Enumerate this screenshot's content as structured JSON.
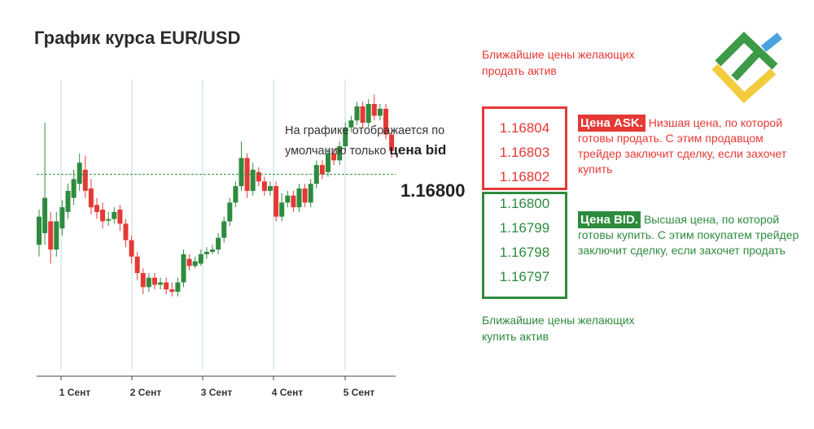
{
  "title": "График курса EUR/USD",
  "note": {
    "text": "На графике отображается по умолчанию только ",
    "bold": "цена bid"
  },
  "current_price": "1.16800",
  "ask": {
    "caption": "Ближайшие цены желающих продать актив",
    "prices": [
      "1.16804",
      "1.16803",
      "1.16802"
    ],
    "tag": "Цена ASK.",
    "description": " Низшая цена, по которой готовы продать. С этим продавцом трейдер заключит сделку, если захочет купить",
    "color": "#e53935"
  },
  "bid": {
    "caption": "Ближайшие цены желающих купить актив",
    "prices": [
      "1.16800",
      "1.16799",
      "1.16798",
      "1.16797"
    ],
    "tag": "Цена BID.",
    "description": " Высшая цена, по которой готовы купить. С этим покупатем трейдер заключит сделку, если захочет продать",
    "color": "#2e8b3e"
  },
  "logo": {
    "icon": "brand-logo-icon",
    "colors": [
      "#3d9a47",
      "#4aa3df",
      "#f2cc3d"
    ]
  },
  "chart_data": {
    "type": "candlestick",
    "title": "График курса EUR/USD",
    "x_tick_labels": [
      "1 Сент",
      "2 Сент",
      "3 Сент",
      "4 Сент",
      "5 Сент"
    ],
    "ylim": [
      1.162,
      1.171
    ],
    "current_price": 1.168,
    "up_color": "#2e8b3e",
    "down_color": "#e53935",
    "grid": "vertical",
    "candles": [
      [
        1.165,
        1.1662,
        1.1665,
        1.1645
      ],
      [
        1.1655,
        1.167,
        1.1702,
        1.165
      ],
      [
        1.166,
        1.1648,
        1.1664,
        1.1642
      ],
      [
        1.1648,
        1.166,
        1.1664,
        1.1645
      ],
      [
        1.1657,
        1.1666,
        1.1669,
        1.1654
      ],
      [
        1.1664,
        1.1673,
        1.1676,
        1.1661
      ],
      [
        1.167,
        1.1678,
        1.1682,
        1.1667
      ],
      [
        1.1676,
        1.1685,
        1.1689,
        1.1673
      ],
      [
        1.1682,
        1.1673,
        1.1688,
        1.167
      ],
      [
        1.1674,
        1.1666,
        1.1678,
        1.1663
      ],
      [
        1.1667,
        1.1664,
        1.167,
        1.1661
      ],
      [
        1.1665,
        1.166,
        1.1668,
        1.1657
      ],
      [
        1.1661,
        1.1661,
        1.1664,
        1.1658
      ],
      [
        1.1661,
        1.1664,
        1.1666,
        1.1659
      ],
      [
        1.1665,
        1.1659,
        1.1667,
        1.1656
      ],
      [
        1.1659,
        1.1652,
        1.1661,
        1.1649
      ],
      [
        1.1652,
        1.1645,
        1.1654,
        1.1642
      ],
      [
        1.1645,
        1.1638,
        1.1647,
        1.1635
      ],
      [
        1.1638,
        1.1632,
        1.164,
        1.1629
      ],
      [
        1.1632,
        1.1636,
        1.1638,
        1.163
      ],
      [
        1.1636,
        1.1633,
        1.1638,
        1.1631
      ],
      [
        1.1633,
        1.1634,
        1.1636,
        1.1631
      ],
      [
        1.1634,
        1.1631,
        1.1636,
        1.1629
      ],
      [
        1.1631,
        1.163,
        1.1634,
        1.1628
      ],
      [
        1.163,
        1.1634,
        1.1636,
        1.1628
      ],
      [
        1.1634,
        1.1646,
        1.1648,
        1.1632
      ],
      [
        1.1644,
        1.1641,
        1.1646,
        1.1639
      ],
      [
        1.1641,
        1.1643,
        1.1645,
        1.164
      ],
      [
        1.1642,
        1.1646,
        1.1648,
        1.1641
      ],
      [
        1.1646,
        1.1647,
        1.1649,
        1.1644
      ],
      [
        1.1647,
        1.1648,
        1.165,
        1.1646
      ],
      [
        1.1648,
        1.1653,
        1.1655,
        1.1646
      ],
      [
        1.1653,
        1.166,
        1.1662,
        1.1651
      ],
      [
        1.166,
        1.1668,
        1.167,
        1.1658
      ],
      [
        1.1668,
        1.1675,
        1.1677,
        1.1666
      ],
      [
        1.1675,
        1.1687,
        1.1694,
        1.1673
      ],
      [
        1.1687,
        1.1673,
        1.1689,
        1.167
      ],
      [
        1.1673,
        1.1682,
        1.1685,
        1.1671
      ],
      [
        1.1681,
        1.1677,
        1.1683,
        1.1675
      ],
      [
        1.1677,
        1.1673,
        1.1679,
        1.1671
      ],
      [
        1.1673,
        1.1675,
        1.1677,
        1.1671
      ],
      [
        1.1675,
        1.1662,
        1.1677,
        1.166
      ],
      [
        1.1662,
        1.1668,
        1.1672,
        1.166
      ],
      [
        1.1668,
        1.1671,
        1.1673,
        1.1666
      ],
      [
        1.1671,
        1.1666,
        1.1673,
        1.1664
      ],
      [
        1.1666,
        1.1674,
        1.1676,
        1.1664
      ],
      [
        1.1674,
        1.1668,
        1.1676,
        1.1666
      ],
      [
        1.1668,
        1.1676,
        1.1678,
        1.1666
      ],
      [
        1.1676,
        1.1684,
        1.1686,
        1.1674
      ],
      [
        1.1684,
        1.168,
        1.1686,
        1.1678
      ],
      [
        1.1681,
        1.1689,
        1.1691,
        1.1679
      ],
      [
        1.1689,
        1.1686,
        1.1691,
        1.1684
      ],
      [
        1.1686,
        1.1692,
        1.1694,
        1.1684
      ],
      [
        1.1692,
        1.17,
        1.1702,
        1.169
      ],
      [
        1.17,
        1.1703,
        1.1705,
        1.1698
      ],
      [
        1.1703,
        1.1709,
        1.1711,
        1.1701
      ],
      [
        1.1709,
        1.1702,
        1.1711,
        1.17
      ],
      [
        1.1702,
        1.171,
        1.1712,
        1.17
      ],
      [
        1.171,
        1.1705,
        1.1714,
        1.1703
      ],
      [
        1.1705,
        1.1708,
        1.171,
        1.1703
      ],
      [
        1.1708,
        1.1697,
        1.171,
        1.1695
      ],
      [
        1.1697,
        1.169,
        1.1699,
        1.1687
      ]
    ]
  }
}
